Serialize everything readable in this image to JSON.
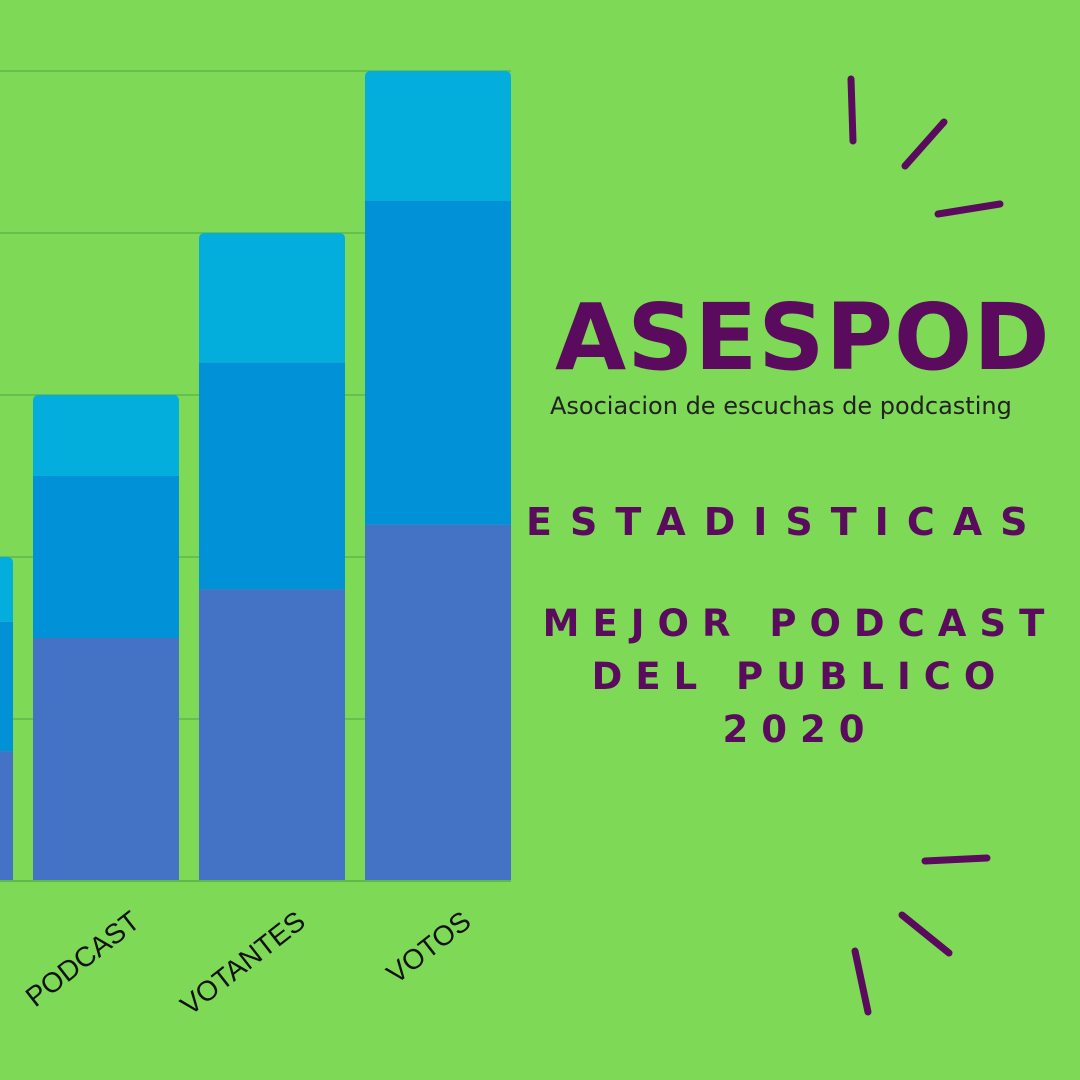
{
  "brand": {
    "name": "ASESPOD",
    "tagline": "Asociacion de escuchas de podcasting"
  },
  "heading": "ESTADISTICAS",
  "subtitle": {
    "line1": "MEJOR PODCAST",
    "line2": "DEL PUBLICO",
    "line3": "2020"
  },
  "colors": {
    "background": "#7ed957",
    "accent": "#5b0b5d",
    "series": [
      "#4472c4",
      "#0191d6",
      "#03aedd"
    ],
    "grid": "#5fb84a"
  },
  "chart_data": {
    "type": "bar",
    "stacked": true,
    "categories": [
      "",
      "PODCAST",
      "VOTANTES",
      "VOTOS"
    ],
    "series": [
      {
        "values": [
          8,
          15,
          18,
          22
        ]
      },
      {
        "values": [
          8,
          10,
          14,
          20
        ]
      },
      {
        "values": [
          4,
          5,
          8,
          8
        ]
      }
    ],
    "ylim": [
      0,
      50
    ],
    "grid": true,
    "legend": "none"
  }
}
